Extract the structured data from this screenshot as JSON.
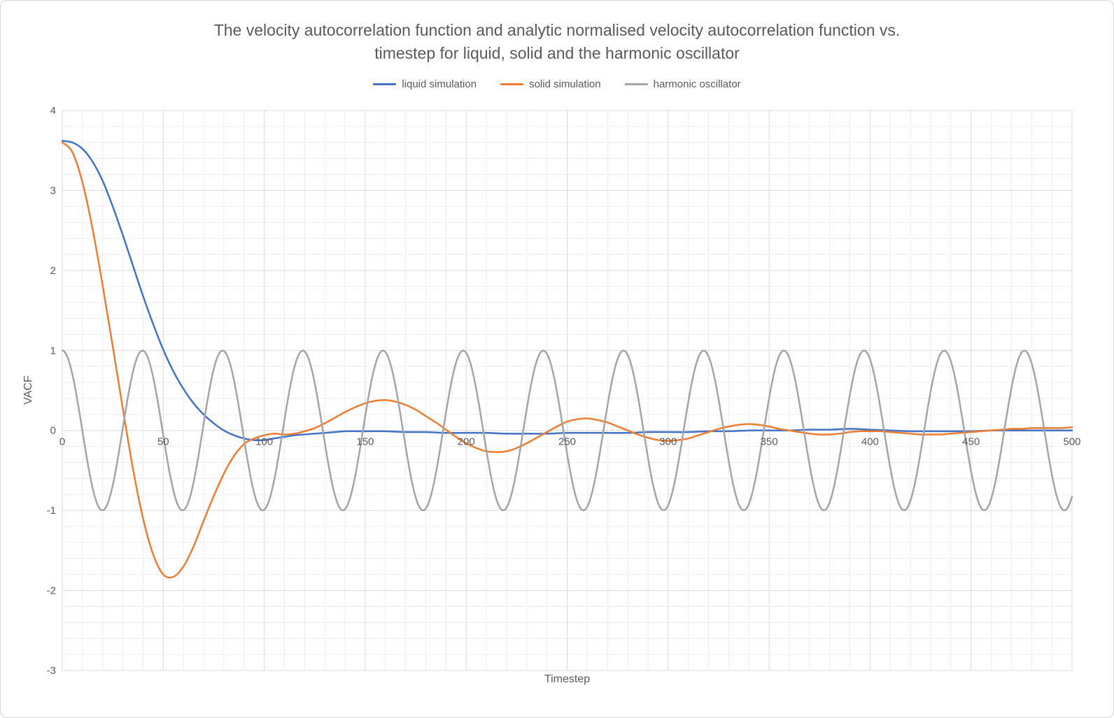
{
  "title_lines": {
    "line1": "The velocity autocorrelation function and analytic normalised velocity autocorrelation function vs.",
    "line2": "timestep for liquid, solid and the harmonic oscillator"
  },
  "chart_data": {
    "type": "line",
    "title": "The velocity autocorrelation function and analytic normalised velocity autocorrelation function vs. timestep for liquid, solid and the harmonic oscillator",
    "xlabel": "Timestep",
    "ylabel": "VACF",
    "xlim": [
      0,
      500
    ],
    "ylim": [
      -3,
      4
    ],
    "x_major_unit": 50,
    "x_minor_unit": 10,
    "y_major_unit": 1,
    "y_minor_unit": 0.2,
    "grid": "major+minor",
    "legend_position": "top",
    "x_ticks": [
      0,
      50,
      100,
      150,
      200,
      250,
      300,
      350,
      400,
      450,
      500
    ],
    "y_ticks": [
      -3,
      -2,
      -1,
      0,
      1,
      2,
      3,
      4
    ],
    "series": [
      {
        "name": "liquid simulation",
        "color": "#4472C4",
        "points": [
          [
            0,
            3.62
          ],
          [
            5,
            3.6
          ],
          [
            10,
            3.52
          ],
          [
            15,
            3.36
          ],
          [
            20,
            3.12
          ],
          [
            25,
            2.8
          ],
          [
            30,
            2.44
          ],
          [
            35,
            2.06
          ],
          [
            40,
            1.68
          ],
          [
            45,
            1.33
          ],
          [
            50,
            1.01
          ],
          [
            55,
            0.74
          ],
          [
            60,
            0.52
          ],
          [
            65,
            0.34
          ],
          [
            70,
            0.2
          ],
          [
            75,
            0.09
          ],
          [
            80,
            0.0
          ],
          [
            85,
            -0.06
          ],
          [
            90,
            -0.1
          ],
          [
            95,
            -0.12
          ],
          [
            100,
            -0.12
          ],
          [
            105,
            -0.1
          ],
          [
            110,
            -0.08
          ],
          [
            115,
            -0.06
          ],
          [
            120,
            -0.05
          ],
          [
            125,
            -0.04
          ],
          [
            130,
            -0.03
          ],
          [
            135,
            -0.02
          ],
          [
            140,
            -0.01
          ],
          [
            150,
            -0.01
          ],
          [
            160,
            -0.01
          ],
          [
            170,
            -0.02
          ],
          [
            180,
            -0.02
          ],
          [
            190,
            -0.03
          ],
          [
            200,
            -0.03
          ],
          [
            210,
            -0.03
          ],
          [
            220,
            -0.04
          ],
          [
            230,
            -0.04
          ],
          [
            240,
            -0.04
          ],
          [
            250,
            -0.03
          ],
          [
            260,
            -0.03
          ],
          [
            270,
            -0.03
          ],
          [
            280,
            -0.03
          ],
          [
            290,
            -0.02
          ],
          [
            300,
            -0.02
          ],
          [
            310,
            -0.02
          ],
          [
            320,
            -0.01
          ],
          [
            330,
            -0.01
          ],
          [
            340,
            0.0
          ],
          [
            350,
            0.0
          ],
          [
            360,
            0.0
          ],
          [
            370,
            0.01
          ],
          [
            380,
            0.01
          ],
          [
            390,
            0.02
          ],
          [
            400,
            0.01
          ],
          [
            410,
            0.0
          ],
          [
            420,
            -0.01
          ],
          [
            430,
            -0.01
          ],
          [
            440,
            -0.01
          ],
          [
            450,
            -0.01
          ],
          [
            460,
            0.0
          ],
          [
            470,
            0.0
          ],
          [
            480,
            0.0
          ],
          [
            490,
            0.0
          ],
          [
            500,
            0.0
          ]
        ]
      },
      {
        "name": "solid simulation",
        "color": "#ED7D31",
        "points": [
          [
            0,
            3.6
          ],
          [
            5,
            3.48
          ],
          [
            10,
            3.1
          ],
          [
            15,
            2.52
          ],
          [
            20,
            1.81
          ],
          [
            25,
            1.05
          ],
          [
            30,
            0.27
          ],
          [
            35,
            -0.48
          ],
          [
            40,
            -1.1
          ],
          [
            45,
            -1.55
          ],
          [
            50,
            -1.8
          ],
          [
            55,
            -1.83
          ],
          [
            60,
            -1.7
          ],
          [
            65,
            -1.45
          ],
          [
            70,
            -1.13
          ],
          [
            75,
            -0.82
          ],
          [
            80,
            -0.54
          ],
          [
            85,
            -0.32
          ],
          [
            90,
            -0.17
          ],
          [
            95,
            -0.1
          ],
          [
            100,
            -0.06
          ],
          [
            105,
            -0.04
          ],
          [
            110,
            -0.05
          ],
          [
            115,
            -0.04
          ],
          [
            120,
            -0.01
          ],
          [
            125,
            0.03
          ],
          [
            130,
            0.09
          ],
          [
            135,
            0.16
          ],
          [
            140,
            0.23
          ],
          [
            145,
            0.29
          ],
          [
            150,
            0.34
          ],
          [
            155,
            0.37
          ],
          [
            160,
            0.38
          ],
          [
            165,
            0.36
          ],
          [
            170,
            0.32
          ],
          [
            175,
            0.26
          ],
          [
            180,
            0.18
          ],
          [
            185,
            0.1
          ],
          [
            190,
            0.01
          ],
          [
            195,
            -0.08
          ],
          [
            200,
            -0.16
          ],
          [
            205,
            -0.22
          ],
          [
            210,
            -0.26
          ],
          [
            215,
            -0.27
          ],
          [
            220,
            -0.26
          ],
          [
            225,
            -0.22
          ],
          [
            230,
            -0.16
          ],
          [
            235,
            -0.09
          ],
          [
            240,
            -0.02
          ],
          [
            245,
            0.05
          ],
          [
            250,
            0.11
          ],
          [
            255,
            0.14
          ],
          [
            260,
            0.15
          ],
          [
            265,
            0.13
          ],
          [
            270,
            0.1
          ],
          [
            275,
            0.05
          ],
          [
            280,
            0.0
          ],
          [
            285,
            -0.05
          ],
          [
            290,
            -0.09
          ],
          [
            295,
            -0.12
          ],
          [
            300,
            -0.13
          ],
          [
            305,
            -0.12
          ],
          [
            310,
            -0.1
          ],
          [
            315,
            -0.06
          ],
          [
            320,
            -0.02
          ],
          [
            325,
            0.02
          ],
          [
            330,
            0.05
          ],
          [
            335,
            0.07
          ],
          [
            340,
            0.08
          ],
          [
            345,
            0.07
          ],
          [
            350,
            0.05
          ],
          [
            355,
            0.02
          ],
          [
            360,
            0.0
          ],
          [
            365,
            -0.02
          ],
          [
            370,
            -0.04
          ],
          [
            375,
            -0.05
          ],
          [
            380,
            -0.05
          ],
          [
            385,
            -0.04
          ],
          [
            390,
            -0.02
          ],
          [
            395,
            -0.01
          ],
          [
            400,
            -0.01
          ],
          [
            405,
            -0.01
          ],
          [
            410,
            -0.02
          ],
          [
            415,
            -0.03
          ],
          [
            420,
            -0.04
          ],
          [
            425,
            -0.05
          ],
          [
            430,
            -0.05
          ],
          [
            435,
            -0.05
          ],
          [
            440,
            -0.04
          ],
          [
            445,
            -0.03
          ],
          [
            450,
            -0.02
          ],
          [
            455,
            -0.01
          ],
          [
            460,
            0.0
          ],
          [
            465,
            0.01
          ],
          [
            470,
            0.02
          ],
          [
            475,
            0.02
          ],
          [
            480,
            0.03
          ],
          [
            485,
            0.03
          ],
          [
            490,
            0.03
          ],
          [
            495,
            0.03
          ],
          [
            500,
            0.04
          ]
        ]
      },
      {
        "name": "harmonic oscillator",
        "color": "#A5A5A5",
        "function": "cosine",
        "amplitude": 1,
        "period": 39.7,
        "phase": 0,
        "x_range": [
          0,
          500
        ],
        "sample_step": 1
      }
    ]
  },
  "colors": {
    "axis_text": "#595959",
    "major_gridline": "#D9D9D9",
    "minor_gridline": "#EDEDED",
    "background": "#FFFFFF"
  }
}
